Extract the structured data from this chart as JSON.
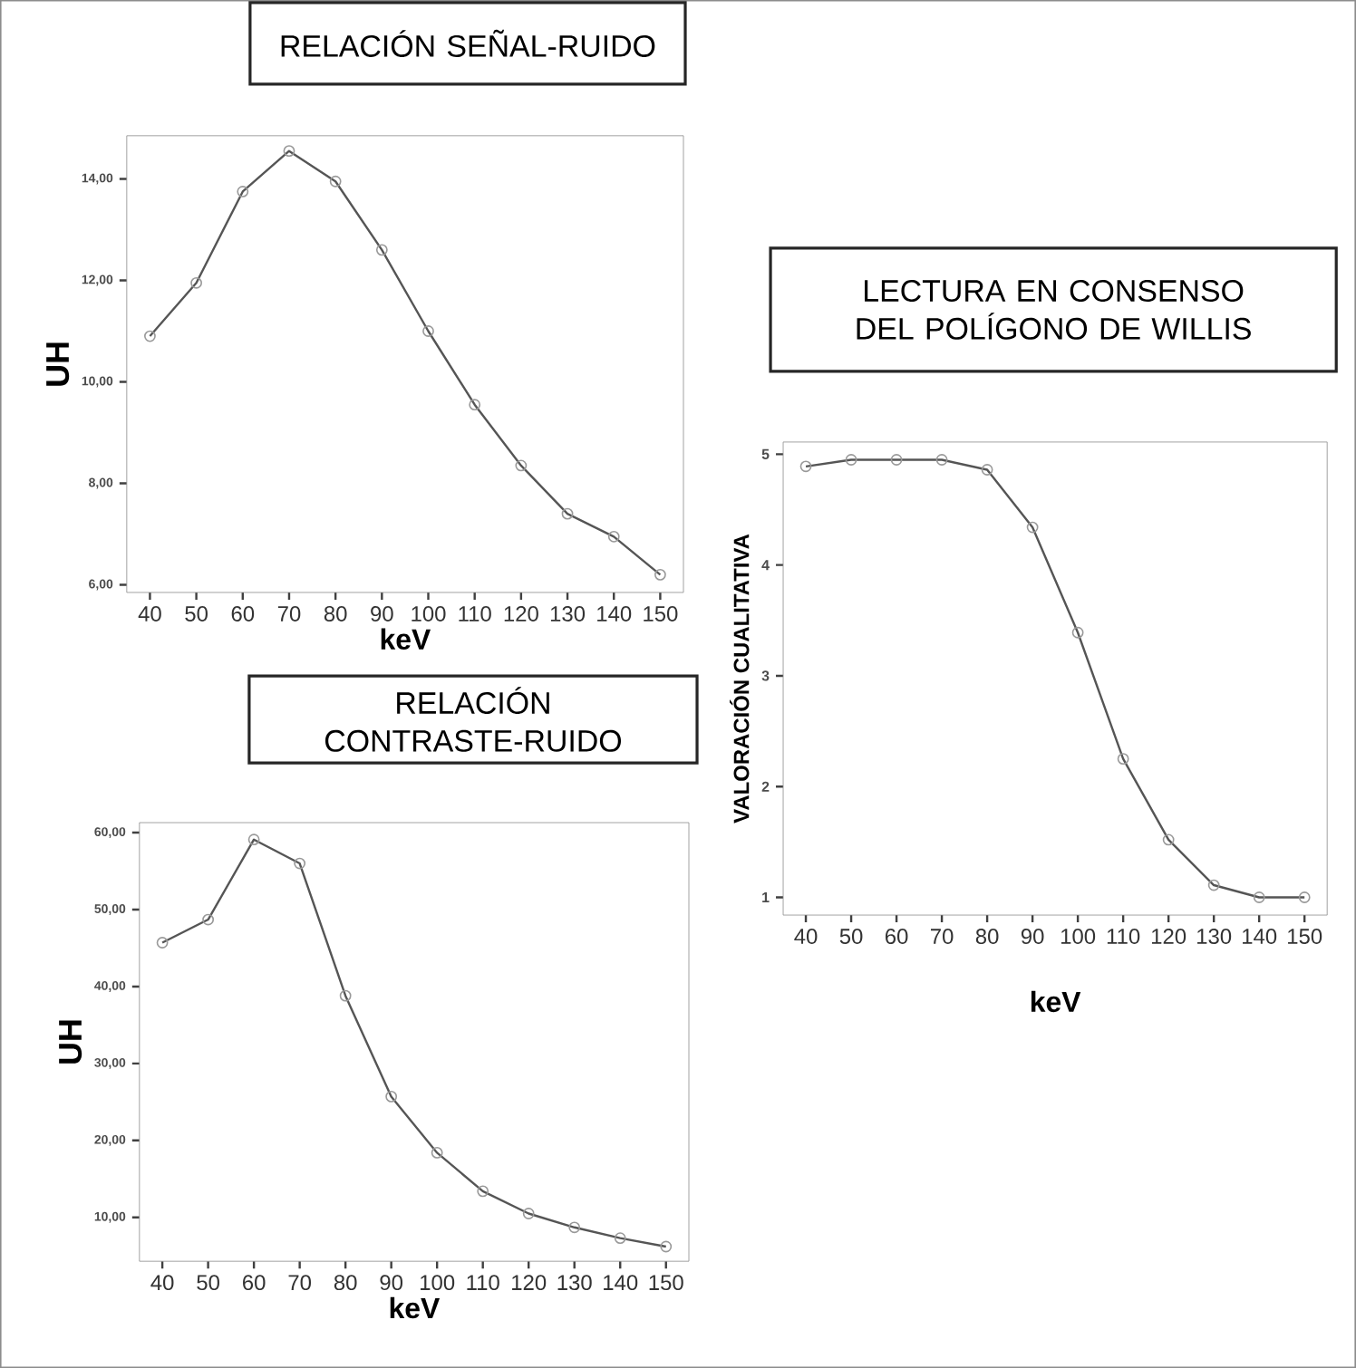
{
  "chart_data": [
    {
      "type": "line",
      "title": "RELACIÓN SEÑAL-RUIDO",
      "xlabel": "keV",
      "ylabel": "UH",
      "categories": [
        "40",
        "50",
        "60",
        "70",
        "80",
        "90",
        "100",
        "110",
        "120",
        "130",
        "140",
        "150"
      ],
      "color": "#555555",
      "marker": "circle",
      "grid": false,
      "values": [
        10.9,
        11.95,
        13.75,
        14.55,
        13.95,
        12.6,
        11.0,
        9.55,
        8.35,
        7.4,
        6.95,
        6.2
      ],
      "ylim": [
        5.85,
        14.85
      ],
      "yticks": [
        {
          "value": 6,
          "label": "6,00"
        },
        {
          "value": 8,
          "label": "8,00"
        },
        {
          "value": 10,
          "label": "10,00"
        },
        {
          "value": 12,
          "label": "12,00"
        },
        {
          "value": 14,
          "label": "14,00"
        }
      ]
    },
    {
      "type": "line",
      "title": "RELACIÓN CONTRASTE-RUIDO",
      "xlabel": "keV",
      "ylabel": "UH",
      "categories": [
        "40",
        "50",
        "60",
        "70",
        "80",
        "90",
        "100",
        "110",
        "120",
        "130",
        "140",
        "150"
      ],
      "color": "#555555",
      "marker": "circle",
      "grid": false,
      "values": [
        45.7,
        48.7,
        59.1,
        56.0,
        38.8,
        25.7,
        18.4,
        13.4,
        10.5,
        8.7,
        7.3,
        6.2
      ],
      "ylim": [
        4.3,
        61.3
      ],
      "yticks": [
        {
          "value": 10,
          "label": "10,00"
        },
        {
          "value": 20,
          "label": "20,00"
        },
        {
          "value": 30,
          "label": "30,00"
        },
        {
          "value": 40,
          "label": "40,00"
        },
        {
          "value": 50,
          "label": "50,00"
        },
        {
          "value": 60,
          "label": "60,00"
        }
      ]
    },
    {
      "type": "line",
      "title": "LECTURA EN CONSENSO DEL POLÍGONO DE WILLIS",
      "xlabel": "keV",
      "ylabel": "VALORACIÓN CUALITATIVA",
      "categories": [
        "40",
        "50",
        "60",
        "70",
        "80",
        "90",
        "100",
        "110",
        "120",
        "130",
        "140",
        "150"
      ],
      "color": "#555555",
      "marker": "circle",
      "grid": false,
      "values": [
        4.89,
        4.95,
        4.95,
        4.95,
        4.86,
        4.34,
        3.39,
        2.25,
        1.52,
        1.11,
        1.0,
        1.0
      ],
      "ylim": [
        0.84,
        5.11
      ],
      "yticks": [
        1,
        2,
        3,
        4,
        5
      ]
    }
  ]
}
